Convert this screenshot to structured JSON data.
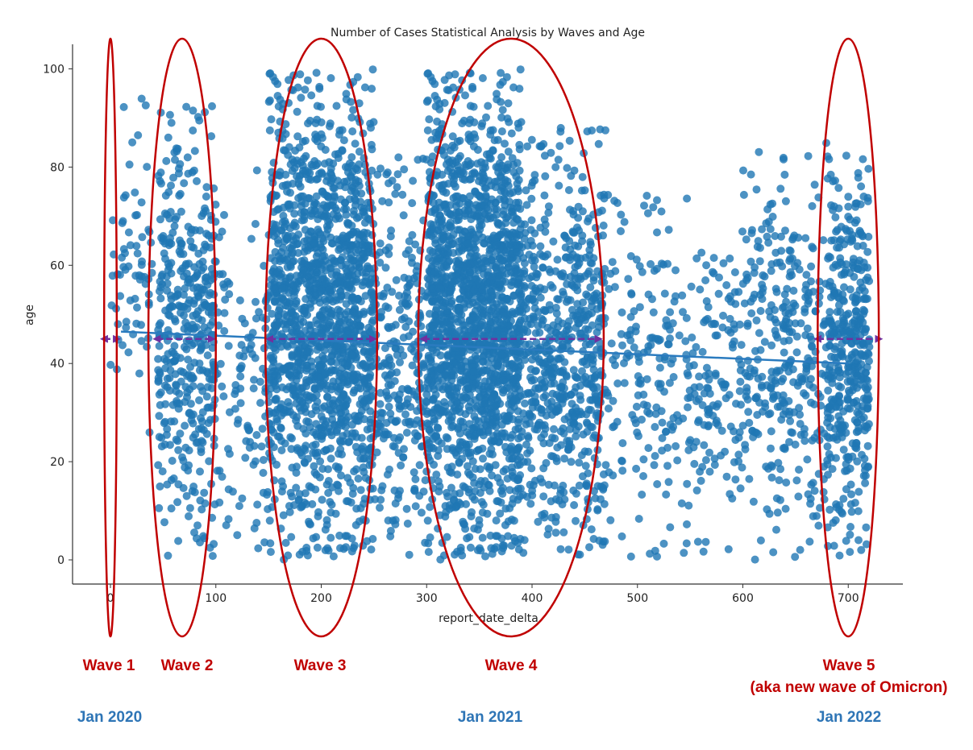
{
  "chart_data": {
    "type": "scatter",
    "title": "Number of Cases Statistical Analysis by Waves and Age",
    "xlabel": "report_date_delta",
    "ylabel": "age",
    "xlim": [
      -35,
      755
    ],
    "ylim": [
      -5,
      106
    ],
    "xticks": [
      0,
      100,
      200,
      300,
      400,
      500,
      600,
      700
    ],
    "yticks": [
      0,
      20,
      40,
      60,
      80,
      100
    ],
    "grid": false,
    "point_color": "#1f77b4",
    "trend_line": {
      "x": [
        10,
        700
      ],
      "y": [
        46.5,
        40.0
      ]
    },
    "clusters": [
      {
        "x_range": [
          0,
          40
        ],
        "y_range": [
          20,
          95
        ],
        "count": 70
      },
      {
        "x_range": [
          45,
          100
        ],
        "y_range": [
          0,
          93
        ],
        "count": 420
      },
      {
        "x_range": [
          100,
          150
        ],
        "y_range": [
          0,
          80
        ],
        "count": 110
      },
      {
        "x_range": [
          150,
          250
        ],
        "y_range": [
          0,
          100
        ],
        "count": 1500
      },
      {
        "x_range": [
          250,
          300
        ],
        "y_range": [
          0,
          82
        ],
        "count": 260
      },
      {
        "x_range": [
          300,
          390
        ],
        "y_range": [
          0,
          100
        ],
        "count": 1700
      },
      {
        "x_range": [
          390,
          470
        ],
        "y_range": [
          0,
          88
        ],
        "count": 650
      },
      {
        "x_range": [
          470,
          600
        ],
        "y_range": [
          0,
          75
        ],
        "count": 320
      },
      {
        "x_range": [
          600,
          680
        ],
        "y_range": [
          0,
          85
        ],
        "count": 330
      },
      {
        "x_range": [
          680,
          720
        ],
        "y_range": [
          0,
          83
        ],
        "count": 420
      }
    ],
    "wave_spans": [
      {
        "x_start": -10,
        "x_end": 10,
        "y": 45
      },
      {
        "x_start": 40,
        "x_end": 100,
        "y": 45
      },
      {
        "x_start": 147,
        "x_end": 253,
        "y": 45
      },
      {
        "x_start": 293,
        "x_end": 467,
        "y": 45
      },
      {
        "x_start": 667,
        "x_end": 733,
        "y": 45
      }
    ],
    "wave_ellipses": [
      {
        "cx": 0,
        "rx": 6
      },
      {
        "cx": 68,
        "rx": 32
      },
      {
        "cx": 200,
        "rx": 53
      },
      {
        "cx": 380,
        "rx": 88
      },
      {
        "cx": 700,
        "rx": 29
      }
    ],
    "ellipse_color": "#c00000",
    "arrow_color": "#7030a0"
  },
  "annotations": {
    "waves": [
      {
        "label": "Wave 1",
        "sub": "",
        "x": 135
      },
      {
        "label": "Wave 2",
        "sub": "",
        "x": 232
      },
      {
        "label": "Wave 3",
        "sub": "",
        "x": 397
      },
      {
        "label": "Wave 4",
        "sub": "",
        "x": 634
      },
      {
        "label": "Wave 5",
        "sub": "(aka new wave of Omicron)",
        "x": 1053
      }
    ],
    "dates": [
      {
        "label": "Jan 2020",
        "x": 136
      },
      {
        "label": "Jan 2021",
        "x": 608
      },
      {
        "label": "Jan 2022",
        "x": 1053
      }
    ],
    "wave_color": "#c00000",
    "date_color": "#2e75b6"
  }
}
